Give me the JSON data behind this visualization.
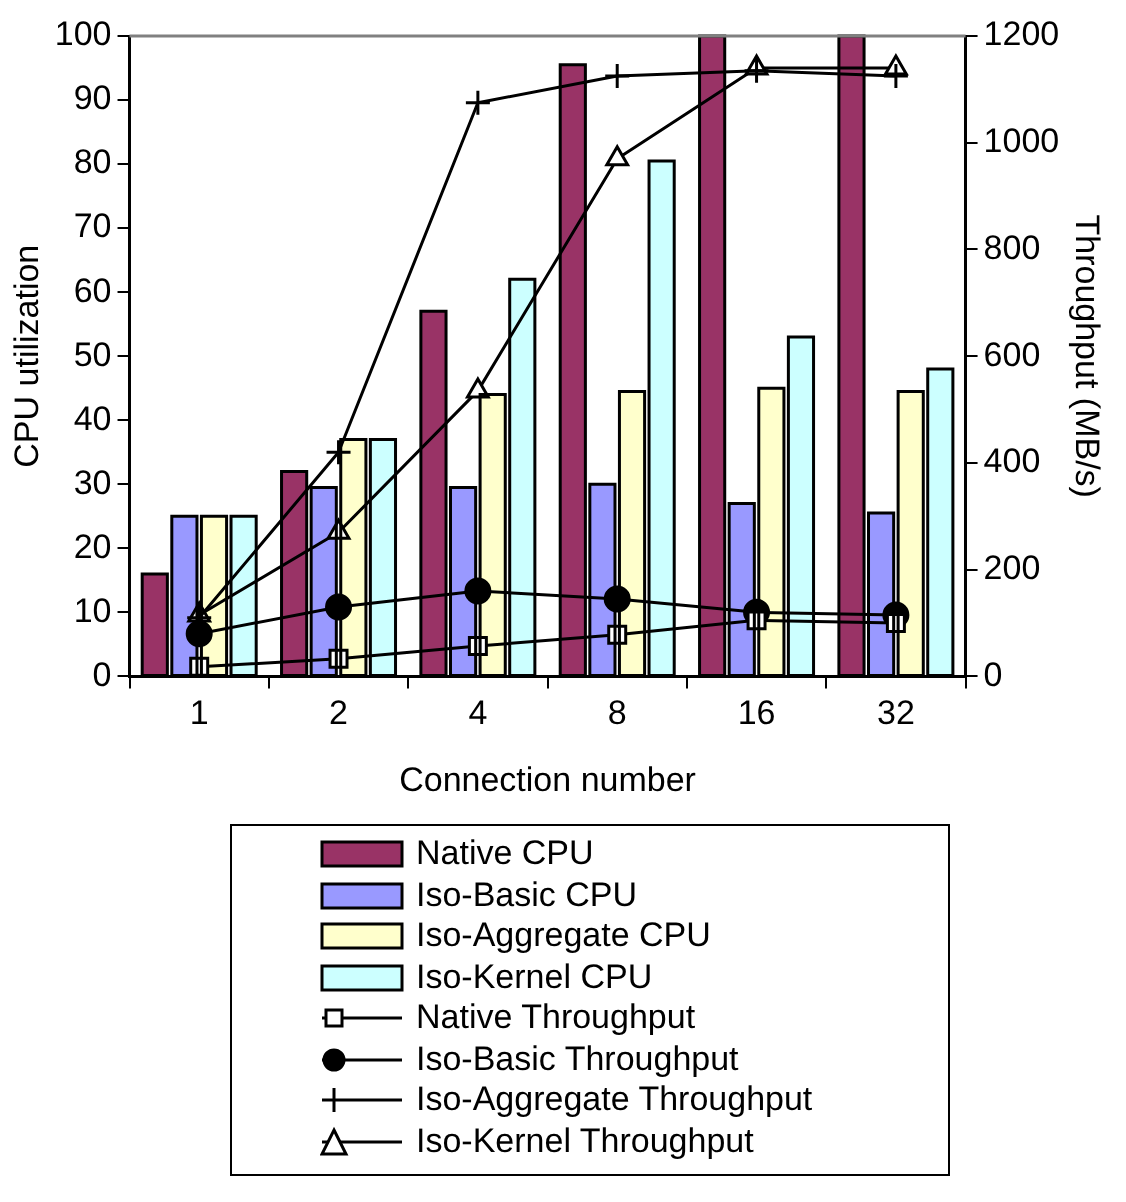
{
  "chart_data": {
    "type": "bar",
    "xlabel": "Connection number",
    "ylabel": "CPU utilization",
    "y2label": "Throughput (MB/s)",
    "categories": [
      "1",
      "2",
      "4",
      "8",
      "16",
      "32"
    ],
    "ylim": [
      0,
      100
    ],
    "yticks": [
      0,
      10,
      20,
      30,
      40,
      50,
      60,
      70,
      80,
      90,
      100
    ],
    "y2lim": [
      0,
      1200
    ],
    "y2ticks": [
      0,
      200,
      400,
      600,
      800,
      1000,
      1200
    ],
    "grid": false,
    "legend": "bottom",
    "series": [
      {
        "name": "Native CPU",
        "color": "#993366",
        "values": [
          16,
          32,
          57,
          95.5,
          100,
          100
        ]
      },
      {
        "name": "Iso-Basic CPU",
        "color": "#9999ff",
        "values": [
          25,
          29.5,
          29.5,
          30,
          27,
          25.5
        ]
      },
      {
        "name": "Iso-Aggregate CPU",
        "color": "#ffffcc",
        "values": [
          25,
          37,
          44,
          44.5,
          45,
          44.5
        ]
      },
      {
        "name": "Iso-Kernel CPU",
        "color": "#ccffff",
        "values": [
          25,
          37,
          62,
          80.5,
          53,
          48
        ]
      },
      {
        "name": "Native Throughput",
        "type": "line",
        "axis": "y2",
        "color": "#000000",
        "marker": "square",
        "values": [
          18,
          33,
          57,
          78,
          105,
          100
        ]
      },
      {
        "name": "Iso-Basic Throughput",
        "type": "line",
        "axis": "y2",
        "color": "#000000",
        "marker": "circle",
        "values": [
          80,
          130,
          160,
          145,
          120,
          115
        ]
      },
      {
        "name": "Iso-Aggregate Throughput",
        "type": "line",
        "axis": "y2",
        "color": "#000000",
        "marker": "cross",
        "values": [
          110,
          420,
          1075,
          1125,
          1135,
          1125
        ]
      },
      {
        "name": "Iso-Kernel Throughput",
        "type": "line",
        "axis": "y2",
        "color": "#000000",
        "marker": "triangle",
        "values": [
          115,
          270,
          535,
          970,
          1140,
          1140
        ]
      }
    ]
  }
}
